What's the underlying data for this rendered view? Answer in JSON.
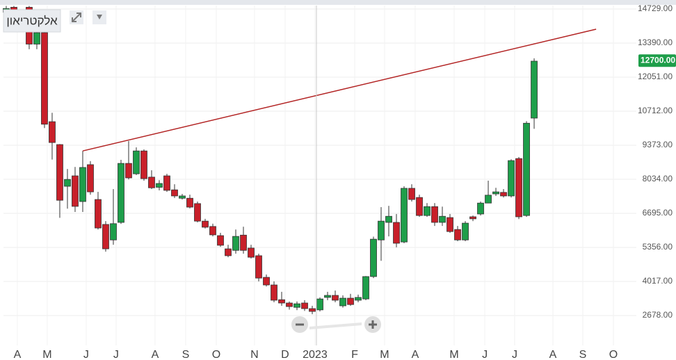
{
  "chart_data": {
    "type": "candlestick",
    "title": "אלקטריאון",
    "up_color": "#1e9e4a",
    "down_color": "#c8202a",
    "grid": true,
    "x": [
      0,
      1,
      2,
      3,
      4,
      5,
      6,
      7,
      8,
      9,
      10,
      11,
      12,
      13,
      14,
      15,
      16,
      17,
      18,
      19,
      20,
      21,
      22,
      23,
      24,
      25,
      26,
      27,
      28,
      29,
      30,
      31,
      32,
      33,
      34,
      35,
      36,
      37,
      38,
      39,
      40,
      41,
      42,
      43,
      44,
      45,
      46,
      47,
      48,
      49,
      50,
      51,
      52,
      53,
      54,
      55,
      56,
      57,
      58,
      59,
      60,
      61,
      62,
      63,
      64,
      65,
      66,
      67,
      68,
      69
    ],
    "open": [
      14600,
      14800,
      14600,
      14800,
      13350,
      13800,
      10300,
      9400,
      7760,
      8170,
      7160,
      8610,
      7240,
      6260,
      5650,
      6340,
      8660,
      8250,
      9150,
      8120,
      7720,
      8170,
      7620,
      7290,
      7290,
      7080,
      6390,
      6180,
      5820,
      5300,
      5240,
      5840,
      5330,
      5030,
      4180,
      3880,
      3300,
      3170,
      3000,
      3170,
      2950,
      2900,
      3390,
      3470,
      3060,
      3360,
      3280,
      3330,
      4210,
      5650,
      6340,
      6340,
      5570,
      7680,
      7320,
      6610,
      6960,
      6340,
      6530,
      6060,
      5650,
      6560,
      6670,
      7100,
      7460,
      7520,
      7380,
      8850,
      6610,
      10440
    ],
    "high": [
      14850,
      14850,
      14700,
      14850,
      14000,
      13950,
      10650,
      9420,
      8440,
      8520,
      9150,
      8750,
      7540,
      6390,
      7650,
      8800,
      9540,
      9290,
      9210,
      8390,
      8000,
      8250,
      7840,
      7460,
      7430,
      7160,
      6480,
      6290,
      5930,
      5460,
      6060,
      6170,
      5460,
      5110,
      4290,
      4020,
      3610,
      3230,
      3230,
      3280,
      3060,
      3390,
      3610,
      3660,
      3470,
      3530,
      3500,
      4230,
      5780,
      6940,
      6990,
      6670,
      7760,
      7840,
      7430,
      7100,
      7100,
      6960,
      6670,
      6200,
      6390,
      6610,
      7160,
      7980,
      7700,
      7650,
      8820,
      8910,
      10320,
      12790
    ],
    "low": [
      14550,
      14500,
      13900,
      13150,
      13150,
      10050,
      8810,
      6520,
      6880,
      6750,
      6750,
      7430,
      6060,
      5190,
      5460,
      6280,
      8030,
      8200,
      7980,
      7650,
      7600,
      7540,
      7300,
      7240,
      6890,
      6340,
      6100,
      5790,
      5380,
      4970,
      5110,
      5110,
      4920,
      4020,
      3820,
      3200,
      3060,
      2910,
      2890,
      2860,
      2730,
      2840,
      3280,
      3200,
      2990,
      3060,
      3200,
      3280,
      4150,
      4830,
      5790,
      5360,
      5520,
      7160,
      6560,
      6560,
      6200,
      6200,
      5930,
      5600,
      5600,
      6390,
      6610,
      7100,
      7380,
      7320,
      7320,
      6470,
      6560,
      10020
    ],
    "close": [
      14750,
      14600,
      14000,
      13350,
      13800,
      10200,
      9480,
      7210,
      8030,
      6970,
      8500,
      7540,
      6120,
      5300,
      6290,
      8660,
      8090,
      9150,
      8060,
      7700,
      7870,
      7600,
      7380,
      7380,
      6940,
      6390,
      6150,
      5850,
      5440,
      5030,
      5790,
      5240,
      4970,
      4150,
      3880,
      3280,
      3170,
      3030,
      3140,
      2950,
      2840,
      3330,
      3470,
      3280,
      3360,
      3110,
      3390,
      4210,
      5680,
      6390,
      6580,
      5520,
      7680,
      7240,
      6610,
      6960,
      6340,
      6580,
      5980,
      5650,
      6310,
      6480,
      7100,
      7410,
      7540,
      7380,
      8770,
      6560,
      10240,
      12680
    ],
    "xlim": [
      -0.36,
      82.36
    ],
    "xticks": [
      {
        "value": 1.45,
        "label": "A"
      },
      {
        "value": 5.36,
        "label": "M"
      },
      {
        "value": 10.45,
        "label": "J"
      },
      {
        "value": 14.36,
        "label": "J"
      },
      {
        "value": 19.45,
        "label": "A"
      },
      {
        "value": 23.45,
        "label": "S"
      },
      {
        "value": 27.45,
        "label": "O"
      },
      {
        "value": 32.45,
        "label": "N"
      },
      {
        "value": 36.45,
        "label": "D"
      },
      {
        "value": 40.36,
        "label": "2023"
      },
      {
        "value": 45.55,
        "label": "F"
      },
      {
        "value": 49.45,
        "label": "M"
      },
      {
        "value": 53.45,
        "label": "A"
      },
      {
        "value": 58.55,
        "label": "M"
      },
      {
        "value": 62.55,
        "label": "J"
      },
      {
        "value": 66.45,
        "label": "J"
      },
      {
        "value": 71.45,
        "label": "A"
      },
      {
        "value": 75.36,
        "label": "S"
      },
      {
        "value": 79.36,
        "label": "O"
      }
    ],
    "ylim": [
      1503,
      14866
    ],
    "yticks": [
      {
        "value": 14729,
        "label": "14729.00"
      },
      {
        "value": 13390,
        "label": "13390.00"
      },
      {
        "value": 12051,
        "label": "12051.00"
      },
      {
        "value": 10712,
        "label": "10712.00"
      },
      {
        "value": 9373,
        "label": "9373.00"
      },
      {
        "value": 8034,
        "label": "8034.00"
      },
      {
        "value": 6695,
        "label": "6695.00"
      },
      {
        "value": 5356,
        "label": "5356.00"
      },
      {
        "value": 4017,
        "label": "4017.00"
      },
      {
        "value": 2678,
        "label": "2678.00"
      }
    ],
    "last_price": {
      "value": 12700,
      "label": "12700.00"
    },
    "trendline": {
      "x": [
        10,
        77.1
      ],
      "y": [
        9150,
        13936
      ],
      "color": "#b22222"
    }
  }
}
